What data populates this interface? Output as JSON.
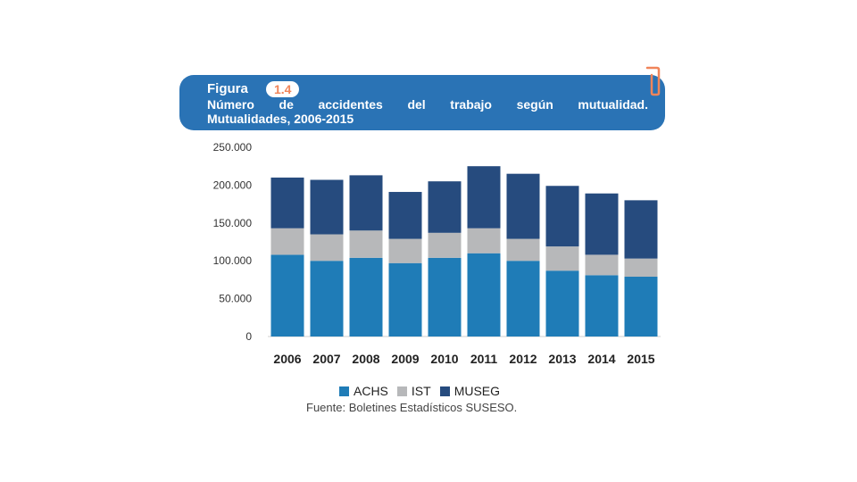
{
  "header": {
    "figure_label": "Figura",
    "figure_number": "1.4",
    "title_line1": "Número de accidentes del trabajo según mutualidad.",
    "title_line2": "Mutualidades, 2006-2015"
  },
  "colors": {
    "header_bg": "#2a73b5",
    "accent": "#f0855a",
    "ACHS": "#1f7cb7",
    "IST": "#b7b8ba",
    "MUSEG": "#264b7e"
  },
  "chart_data": {
    "type": "bar",
    "stacked": true,
    "title": "Número de accidentes del trabajo según mutualidad. Mutualidades, 2006-2015",
    "xlabel": "",
    "ylabel": "",
    "ylim": [
      0,
      250000
    ],
    "yticks": [
      0,
      50000,
      100000,
      150000,
      200000,
      250000
    ],
    "ytick_labels": [
      "0",
      "50.000",
      "100.000",
      "150.000",
      "200.000",
      "250.000"
    ],
    "categories": [
      "2006",
      "2007",
      "2008",
      "2009",
      "2010",
      "2011",
      "2012",
      "2013",
      "2014",
      "2015"
    ],
    "series": [
      {
        "name": "ACHS",
        "values": [
          108000,
          100000,
          104000,
          97000,
          104000,
          110000,
          100000,
          87000,
          81000,
          79000
        ]
      },
      {
        "name": "IST",
        "values": [
          35000,
          35000,
          36000,
          32000,
          33000,
          33000,
          29000,
          32000,
          27000,
          24000
        ]
      },
      {
        "name": "MUSEG",
        "values": [
          67000,
          72000,
          73000,
          62000,
          68000,
          82000,
          86000,
          80000,
          81000,
          77000
        ]
      }
    ],
    "legend_position": "bottom",
    "grid": false
  },
  "source": "Fuente: Boletines Estadísticos SUSESO."
}
